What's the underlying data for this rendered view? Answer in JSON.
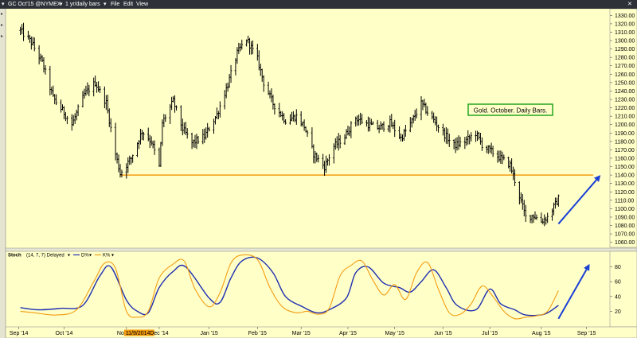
{
  "toolbar": {
    "symbol": "GC Oct'15 @NYMEX",
    "period": "1 yr/daily bars",
    "menu": [
      "File",
      "Edit",
      "View"
    ]
  },
  "colors": {
    "background": "#ffffc8",
    "bars": "#000000",
    "support_line": "#f39c12",
    "arrow": "#1a3fd6",
    "d_line": "#1f2fb0",
    "k_line": "#f39c12",
    "annotation_border": "#12a012"
  },
  "chart_data": [
    {
      "type": "ohlc",
      "annotation": "Gold. October. Daily Bars.",
      "y_ticks": [
        1060,
        1070,
        1080,
        1090,
        1100,
        1110,
        1120,
        1130,
        1140,
        1150,
        1160,
        1170,
        1180,
        1190,
        1200,
        1210,
        1220,
        1230,
        1240,
        1250,
        1260,
        1270,
        1280,
        1290,
        1300,
        1310,
        1320,
        1330
      ],
      "ylim": [
        1054,
        1336
      ],
      "x_labels": [
        "Sep '14",
        "Oct '14",
        "Nov 11/9/2014",
        "Dec '14",
        "Jan '15",
        "Feb '15",
        "Mar '15",
        "Apr '15",
        "May '15",
        "Jun '15",
        "Jul '15",
        "Aug '15",
        "Sep '15"
      ],
      "support_level": 1140,
      "keypoints": [
        [
          "2014-09-03",
          1312
        ],
        [
          "2014-09-10",
          1298
        ],
        [
          "2014-09-17",
          1274
        ],
        [
          "2014-09-24",
          1232
        ],
        [
          "2014-10-01",
          1214
        ],
        [
          "2014-10-06",
          1200
        ],
        [
          "2014-10-14",
          1236
        ],
        [
          "2014-10-21",
          1250
        ],
        [
          "2014-10-28",
          1226
        ],
        [
          "2014-11-03",
          1165
        ],
        [
          "2014-11-06",
          1142
        ],
        [
          "2014-11-13",
          1160
        ],
        [
          "2014-11-20",
          1192
        ],
        [
          "2014-11-26",
          1180
        ],
        [
          "2014-12-01",
          1150
        ],
        [
          "2014-12-03",
          1202
        ],
        [
          "2014-12-10",
          1228
        ],
        [
          "2014-12-16",
          1195
        ],
        [
          "2014-12-22",
          1178
        ],
        [
          "2014-12-30",
          1186
        ],
        [
          "2015-01-07",
          1212
        ],
        [
          "2015-01-14",
          1248
        ],
        [
          "2015-01-20",
          1285
        ],
        [
          "2015-01-26",
          1302
        ],
        [
          "2015-02-02",
          1278
        ],
        [
          "2015-02-06",
          1250
        ],
        [
          "2015-02-12",
          1225
        ],
        [
          "2015-02-20",
          1205
        ],
        [
          "2015-02-27",
          1210
        ],
        [
          "2015-03-04",
          1198
        ],
        [
          "2015-03-10",
          1165
        ],
        [
          "2015-03-17",
          1150
        ],
        [
          "2015-03-23",
          1174
        ],
        [
          "2015-03-30",
          1186
        ],
        [
          "2015-04-06",
          1208
        ],
        [
          "2015-04-14",
          1200
        ],
        [
          "2015-04-21",
          1196
        ],
        [
          "2015-04-28",
          1202
        ],
        [
          "2015-05-05",
          1184
        ],
        [
          "2015-05-12",
          1204
        ],
        [
          "2015-05-18",
          1225
        ],
        [
          "2015-05-26",
          1205
        ],
        [
          "2015-06-02",
          1188
        ],
        [
          "2015-06-08",
          1175
        ],
        [
          "2015-06-15",
          1180
        ],
        [
          "2015-06-22",
          1190
        ],
        [
          "2015-06-26",
          1176
        ],
        [
          "2015-07-02",
          1168
        ],
        [
          "2015-07-08",
          1160
        ],
        [
          "2015-07-14",
          1152
        ],
        [
          "2015-07-20",
          1115
        ],
        [
          "2015-07-24",
          1090
        ],
        [
          "2015-07-29",
          1092
        ],
        [
          "2015-08-03",
          1085
        ],
        [
          "2015-08-07",
          1090
        ],
        [
          "2015-08-12",
          1105
        ],
        [
          "2015-08-14",
          1112
        ]
      ],
      "projection": {
        "from": [
          "2015-08-14",
          1082
        ],
        "to": [
          "2015-09-10",
          1140
        ]
      }
    },
    {
      "type": "line",
      "indicator": "Stoch",
      "params": "(14, 7, 7) Delayed",
      "legend": [
        "D%",
        "K%"
      ],
      "y_ticks": [
        20,
        40,
        60,
        80
      ],
      "ylim": [
        0,
        100
      ],
      "series": [
        {
          "key": "d",
          "points": [
            [
              "2014-09-03",
              25
            ],
            [
              "2014-09-15",
              22
            ],
            [
              "2014-09-29",
              24
            ],
            [
              "2014-10-13",
              28
            ],
            [
              "2014-10-24",
              68
            ],
            [
              "2014-10-31",
              80
            ],
            [
              "2014-11-10",
              35
            ],
            [
              "2014-11-17",
              20
            ],
            [
              "2014-11-24",
              18
            ],
            [
              "2014-12-01",
              52
            ],
            [
              "2014-12-10",
              74
            ],
            [
              "2014-12-18",
              80
            ],
            [
              "2015-01-02",
              38
            ],
            [
              "2015-01-09",
              32
            ],
            [
              "2015-01-16",
              65
            ],
            [
              "2015-01-23",
              88
            ],
            [
              "2015-02-02",
              92
            ],
            [
              "2015-02-12",
              72
            ],
            [
              "2015-02-20",
              40
            ],
            [
              "2015-03-03",
              26
            ],
            [
              "2015-03-12",
              18
            ],
            [
              "2015-03-20",
              22
            ],
            [
              "2015-03-31",
              38
            ],
            [
              "2015-04-06",
              72
            ],
            [
              "2015-04-14",
              80
            ],
            [
              "2015-04-24",
              58
            ],
            [
              "2015-05-04",
              52
            ],
            [
              "2015-05-11",
              46
            ],
            [
              "2015-05-18",
              60
            ],
            [
              "2015-05-26",
              76
            ],
            [
              "2015-06-03",
              52
            ],
            [
              "2015-06-10",
              28
            ],
            [
              "2015-06-22",
              22
            ],
            [
              "2015-07-01",
              50
            ],
            [
              "2015-07-08",
              30
            ],
            [
              "2015-07-17",
              22
            ],
            [
              "2015-07-24",
              15
            ],
            [
              "2015-08-05",
              16
            ],
            [
              "2015-08-14",
              28
            ]
          ]
        },
        {
          "key": "k",
          "points": [
            [
              "2014-09-03",
              20
            ],
            [
              "2014-09-12",
              18
            ],
            [
              "2014-09-26",
              15
            ],
            [
              "2014-10-09",
              22
            ],
            [
              "2014-10-20",
              60
            ],
            [
              "2014-10-27",
              85
            ],
            [
              "2014-11-03",
              78
            ],
            [
              "2014-11-10",
              20
            ],
            [
              "2014-11-17",
              12
            ],
            [
              "2014-11-24",
              20
            ],
            [
              "2014-12-01",
              65
            ],
            [
              "2014-12-10",
              84
            ],
            [
              "2014-12-17",
              88
            ],
            [
              "2014-12-24",
              50
            ],
            [
              "2015-01-02",
              26
            ],
            [
              "2015-01-09",
              45
            ],
            [
              "2015-01-16",
              85
            ],
            [
              "2015-01-23",
              96
            ],
            [
              "2015-02-02",
              90
            ],
            [
              "2015-02-10",
              52
            ],
            [
              "2015-02-18",
              26
            ],
            [
              "2015-02-27",
              18
            ],
            [
              "2015-03-06",
              20
            ],
            [
              "2015-03-13",
              16
            ],
            [
              "2015-03-20",
              24
            ],
            [
              "2015-03-27",
              68
            ],
            [
              "2015-04-03",
              82
            ],
            [
              "2015-04-10",
              88
            ],
            [
              "2015-04-17",
              62
            ],
            [
              "2015-04-24",
              42
            ],
            [
              "2015-05-01",
              56
            ],
            [
              "2015-05-08",
              36
            ],
            [
              "2015-05-15",
              72
            ],
            [
              "2015-05-22",
              86
            ],
            [
              "2015-05-29",
              50
            ],
            [
              "2015-06-05",
              18
            ],
            [
              "2015-06-12",
              16
            ],
            [
              "2015-06-19",
              30
            ],
            [
              "2015-06-26",
              54
            ],
            [
              "2015-07-03",
              40
            ],
            [
              "2015-07-10",
              20
            ],
            [
              "2015-07-17",
              10
            ],
            [
              "2015-07-24",
              12
            ],
            [
              "2015-07-31",
              14
            ],
            [
              "2015-08-07",
              20
            ],
            [
              "2015-08-14",
              48
            ]
          ]
        }
      ],
      "projection": {
        "from": [
          "2015-08-14",
          10
        ],
        "to": [
          "2015-09-03",
          84
        ]
      }
    }
  ]
}
